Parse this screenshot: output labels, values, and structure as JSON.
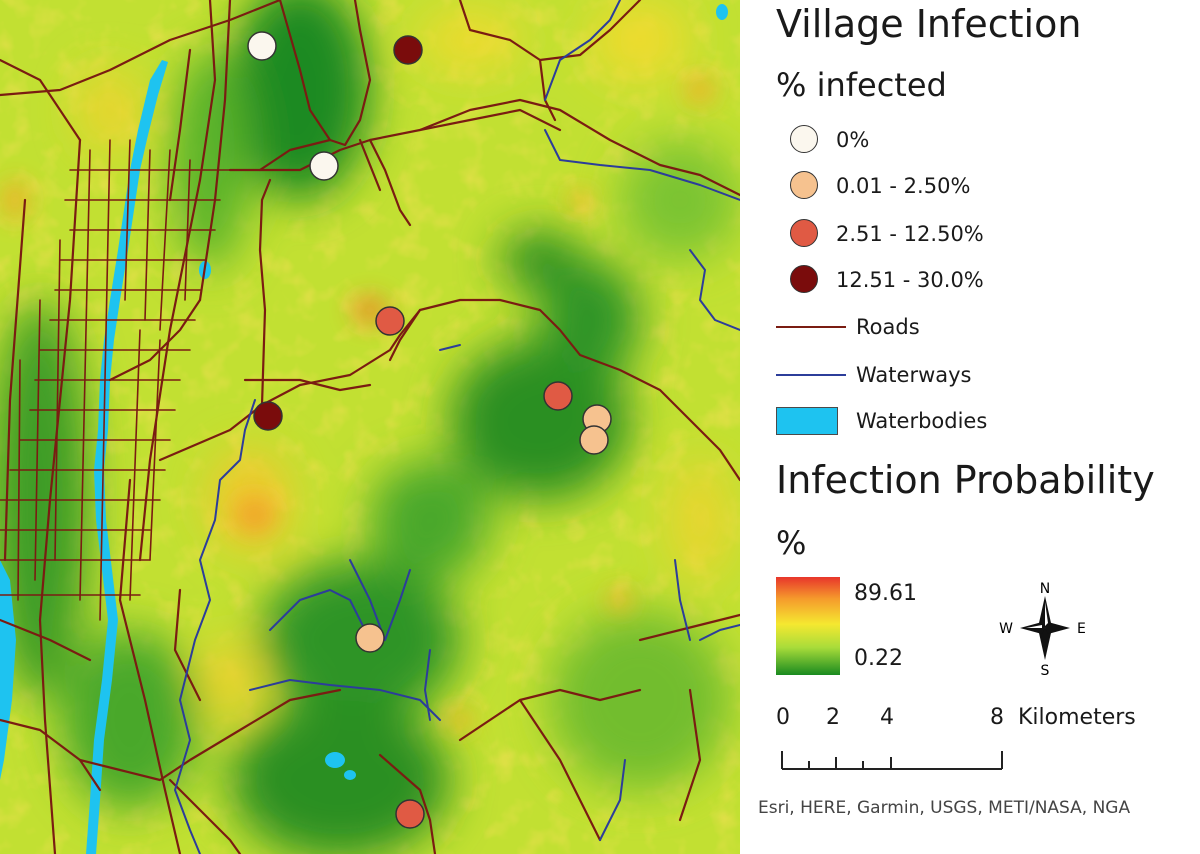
{
  "legend": {
    "village_title": "Village Infection",
    "percent_title": "% infected",
    "classes": [
      {
        "label": "0%",
        "color": "#fbf7ee"
      },
      {
        "label": "0.01 - 2.50%",
        "color": "#f6c28f"
      },
      {
        "label": "2.51 -  12.50%",
        "color": "#e05a44"
      },
      {
        "label": "12.51 - 30.0%",
        "color": "#7a0c0c"
      }
    ],
    "roads_label": "Roads",
    "roads_color": "#7a1c12",
    "waterways_label": "Waterways",
    "waterways_color": "#2c3d9a",
    "waterbodies_label": "Waterbodies",
    "waterbodies_color": "#1ec3f0",
    "probability_title": "Infection Probability",
    "probability_unit": "%",
    "ramp_max": "89.61",
    "ramp_min": "0.22",
    "compass": {
      "n": "N",
      "s": "S",
      "e": "E",
      "w": "W"
    },
    "scale": {
      "ticks": [
        "0",
        "2",
        "4",
        "8"
      ],
      "unit": "Kilometers"
    },
    "attribution": "Esri, HERE, Garmin, USGS, METI/NASA, NGA"
  },
  "villages": [
    {
      "class": 0
    },
    {
      "class": 3
    },
    {
      "class": 0
    },
    {
      "class": 2
    },
    {
      "class": 2
    },
    {
      "class": 1
    },
    {
      "class": 1
    },
    {
      "class": 3
    },
    {
      "class": 1
    },
    {
      "class": 2
    }
  ]
}
